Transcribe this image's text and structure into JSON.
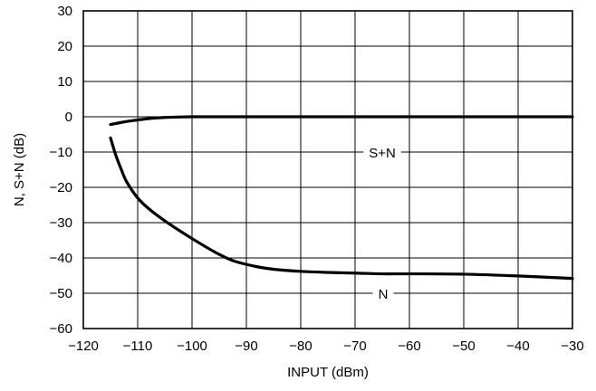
{
  "chart_data": {
    "type": "line",
    "xlabel": "INPUT (dBm)",
    "ylabel": "N, S+N (dB)",
    "xlim": [
      -120,
      -30
    ],
    "ylim": [
      -60,
      30
    ],
    "x_ticks": [
      -120,
      -110,
      -100,
      -90,
      -80,
      -70,
      -60,
      -50,
      -40,
      -30
    ],
    "y_ticks": [
      30,
      20,
      10,
      0,
      -10,
      -20,
      -30,
      -40,
      -50,
      -60
    ],
    "x_tick_labels": [
      "−120",
      "−110",
      "−100",
      "−90",
      "−80",
      "−70",
      "−60",
      "−50",
      "−40",
      "−30"
    ],
    "y_tick_labels": [
      "30",
      "20",
      "10",
      "0",
      "−10",
      "−20",
      "−30",
      "−40",
      "−50",
      "−60"
    ],
    "grid": true,
    "series": [
      {
        "name": "S+N",
        "x": [
          -115,
          -113,
          -111,
          -109,
          -107,
          -105,
          -103,
          -100,
          -95,
          -90,
          -80,
          -60,
          -40,
          -30
        ],
        "y": [
          -2.2,
          -1.6,
          -1.1,
          -0.7,
          -0.4,
          -0.2,
          -0.1,
          0,
          0,
          0,
          0,
          0,
          0,
          0
        ]
      },
      {
        "name": "N",
        "x": [
          -115,
          -114,
          -113,
          -112,
          -110,
          -108,
          -105,
          -100,
          -95,
          -92,
          -88,
          -85,
          -80,
          -75,
          -70,
          -65,
          -60,
          -50,
          -40,
          -30
        ],
        "y": [
          -6,
          -11,
          -15,
          -18.5,
          -23,
          -26,
          -29.5,
          -34.5,
          -39,
          -41,
          -42.5,
          -43.2,
          -43.8,
          -44.1,
          -44.3,
          -44.5,
          -44.5,
          -44.6,
          -45.1,
          -45.8
        ]
      }
    ]
  }
}
